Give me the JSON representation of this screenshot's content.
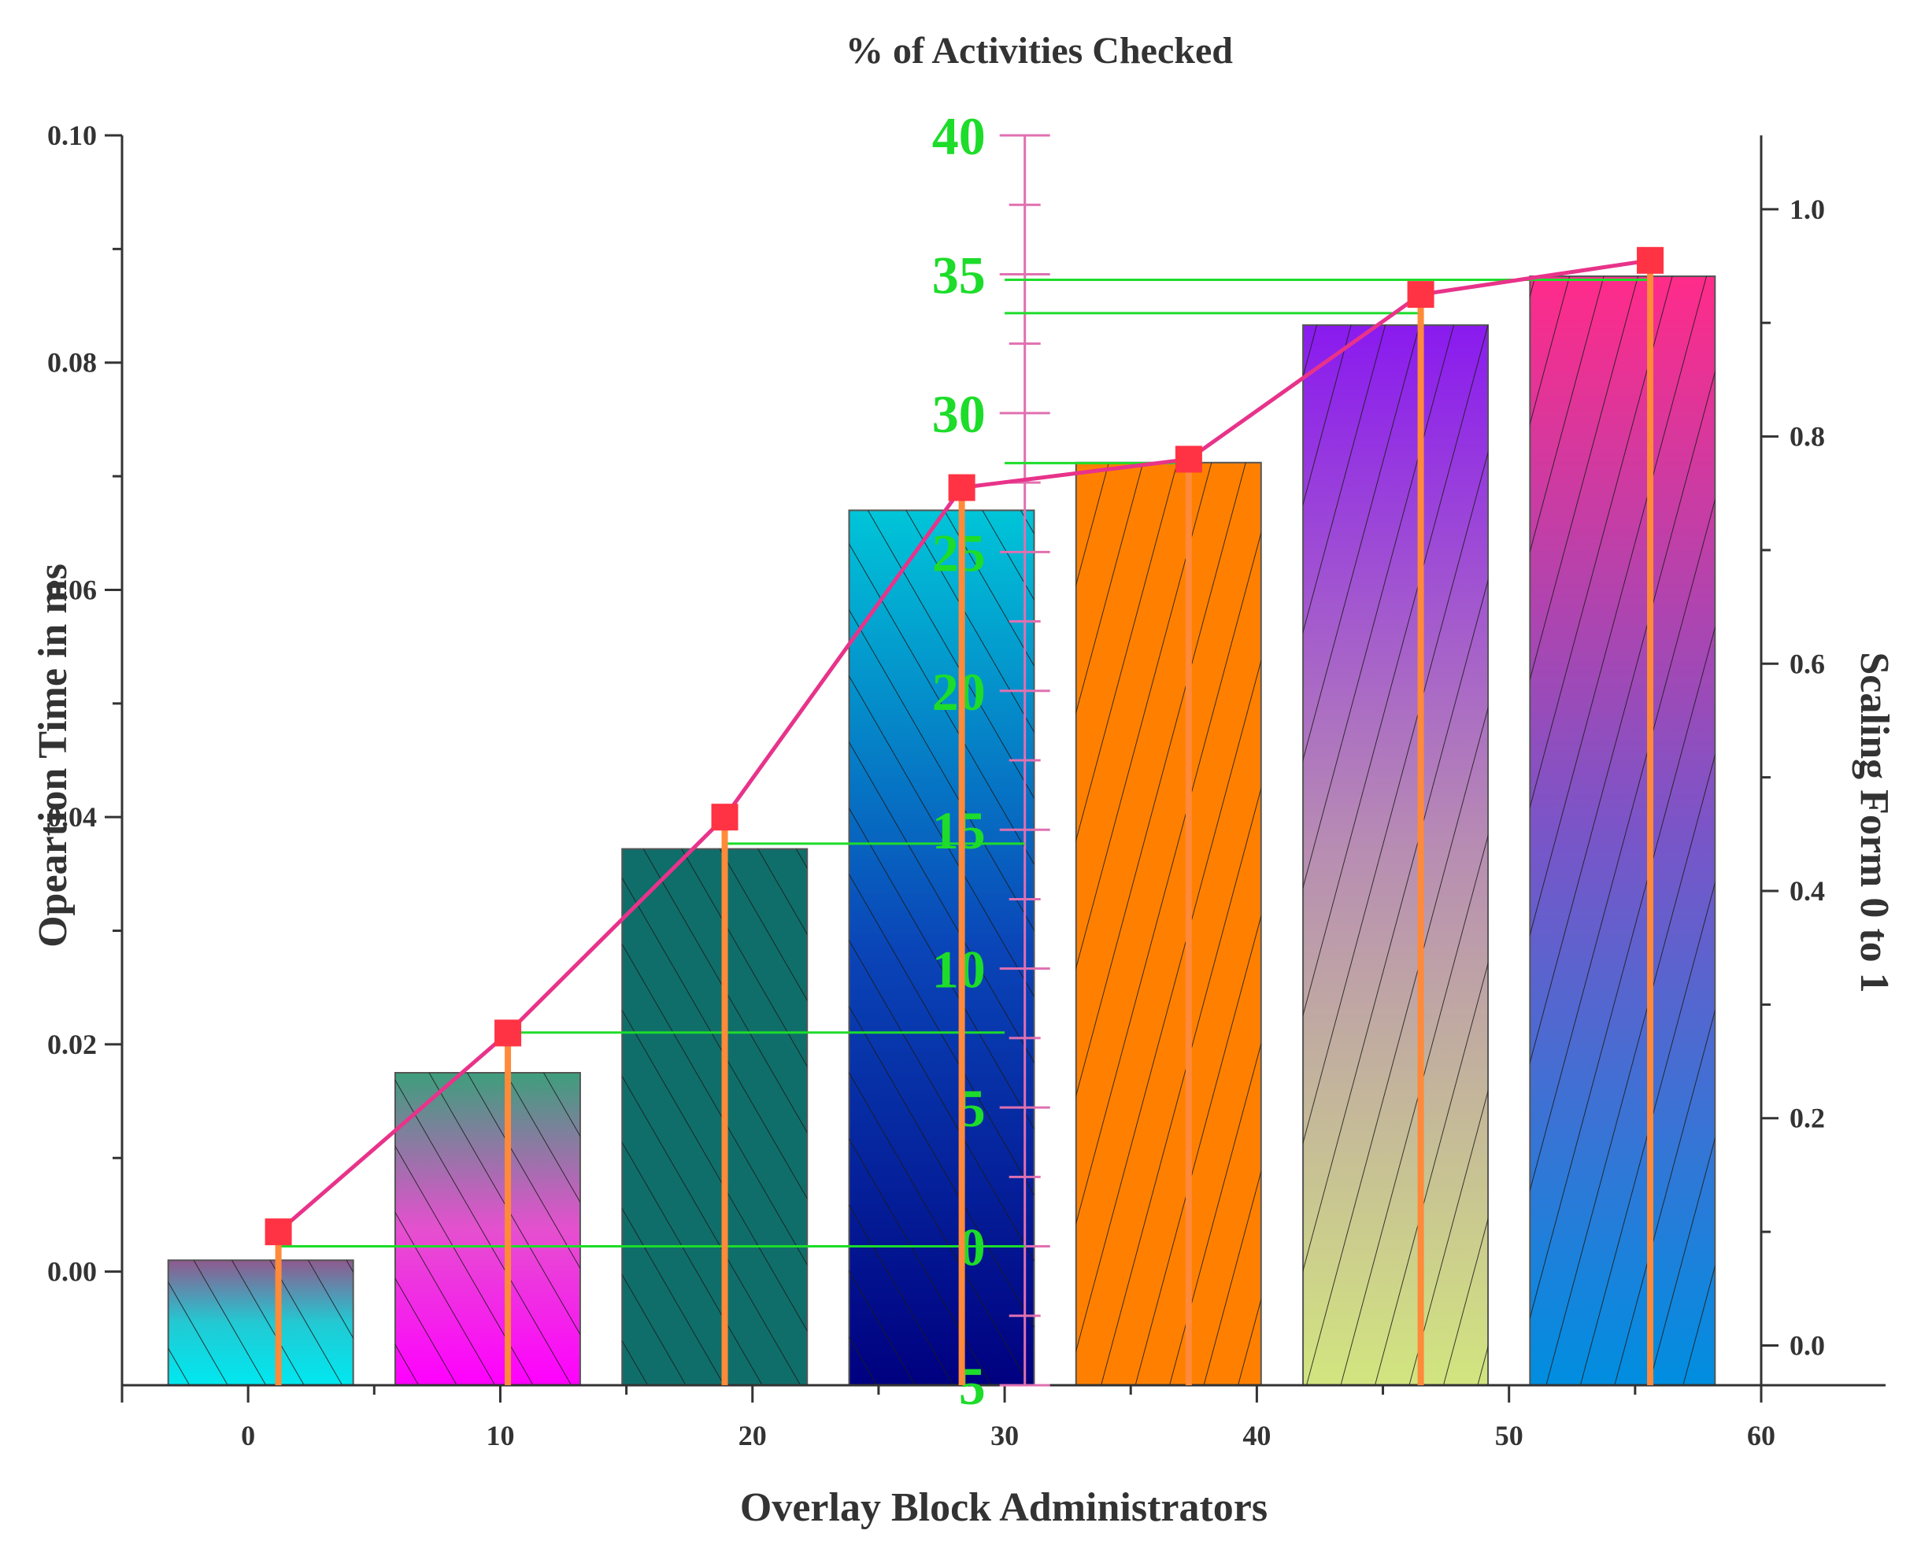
{
  "chart_data": {
    "type": "bar",
    "title": "% of Activities Checked",
    "xlabel": "Overlay Block Administrators",
    "ylabel": "Opeartion Time in ms",
    "y2label": "Scaling Form 0 to 1",
    "xlim": [
      -5,
      60
    ],
    "ylim": [
      -0.01,
      0.1
    ],
    "y2lim": [
      -0.035,
      1.065
    ],
    "y3lim": [
      -5,
      40
    ],
    "x_ticks": [
      "0",
      "10",
      "20",
      "30",
      "40",
      "50",
      "60"
    ],
    "y_ticks": [
      "0.00",
      "0.02",
      "0.04",
      "0.06",
      "0.08",
      "0.10"
    ],
    "y2_ticks": [
      "0.0",
      "0.2",
      "0.4",
      "0.6",
      "0.8",
      "1.0"
    ],
    "y3_ticks": [
      "5",
      "0",
      "5",
      "10",
      "15",
      "20",
      "25",
      "30",
      "35",
      "40"
    ],
    "y3_tick_values": [
      -5,
      0,
      5,
      10,
      15,
      20,
      25,
      30,
      35,
      40
    ],
    "bars": [
      {
        "x": 0.5,
        "value": 0.001,
        "colors": [
          "#8f5a8e",
          "#22c9d3",
          "#00e8f0"
        ],
        "hatch_dir": "right"
      },
      {
        "x": 9.5,
        "value": 0.0175,
        "colors": [
          "#3e9e7c",
          "#e550cf",
          "#ff00ff"
        ],
        "hatch_dir": "right"
      },
      {
        "x": 18.5,
        "value": 0.0372,
        "colors": [
          "#0f6e6a",
          "#0f6e6a",
          "#0f6e6a"
        ],
        "hatch_dir": "right"
      },
      {
        "x": 27.5,
        "value": 0.067,
        "colors": [
          "#00c5d8",
          "#0a45b8",
          "#000080"
        ],
        "hatch_dir": "right"
      },
      {
        "x": 36.5,
        "value": 0.0712,
        "colors": [
          "#ff8000",
          "#ff8000",
          "#ff8000"
        ],
        "hatch_dir": "left"
      },
      {
        "x": 45.5,
        "value": 0.0833,
        "colors": [
          "#8a1aef",
          "#b88eb2",
          "#d2e57f"
        ],
        "hatch_dir": "left"
      },
      {
        "x": 54.5,
        "value": 0.0876,
        "colors": [
          "#ff2b8a",
          "#7a55c8",
          "#008ee0"
        ],
        "hatch_dir": "left"
      }
    ],
    "series": [
      {
        "name": "Scaling",
        "axis": "y2",
        "color": "#e8338a",
        "x": [
          1.2,
          10.3,
          18.9,
          28.3,
          37.3,
          46.5,
          55.6
        ],
        "values": [
          0.1,
          0.275,
          0.465,
          0.755,
          0.78,
          0.925,
          0.955
        ]
      }
    ],
    "drop_lines": {
      "color": "#ff8a3a",
      "values_from": "series"
    },
    "reference_lines": [
      {
        "value": 0.0,
        "from_x": 1.2,
        "to_x": 30.8
      },
      {
        "value": 7.7,
        "from_x": 10.3,
        "to_x": 30.0
      },
      {
        "value": 14.5,
        "from_x": 18.9,
        "to_x": 30.8
      },
      {
        "value": 28.2,
        "from_x": 30.0,
        "to_x": 37.3
      },
      {
        "value": 33.6,
        "from_x": 30.0,
        "to_x": 46.5
      },
      {
        "value": 34.8,
        "from_x": 30.0,
        "to_x": 55.6
      }
    ],
    "colors": {
      "axis": "#333333",
      "green": "#1ddc2a",
      "pink_axis": "#e070b0",
      "marker": "#ff3344",
      "line": "#e8338a"
    }
  }
}
